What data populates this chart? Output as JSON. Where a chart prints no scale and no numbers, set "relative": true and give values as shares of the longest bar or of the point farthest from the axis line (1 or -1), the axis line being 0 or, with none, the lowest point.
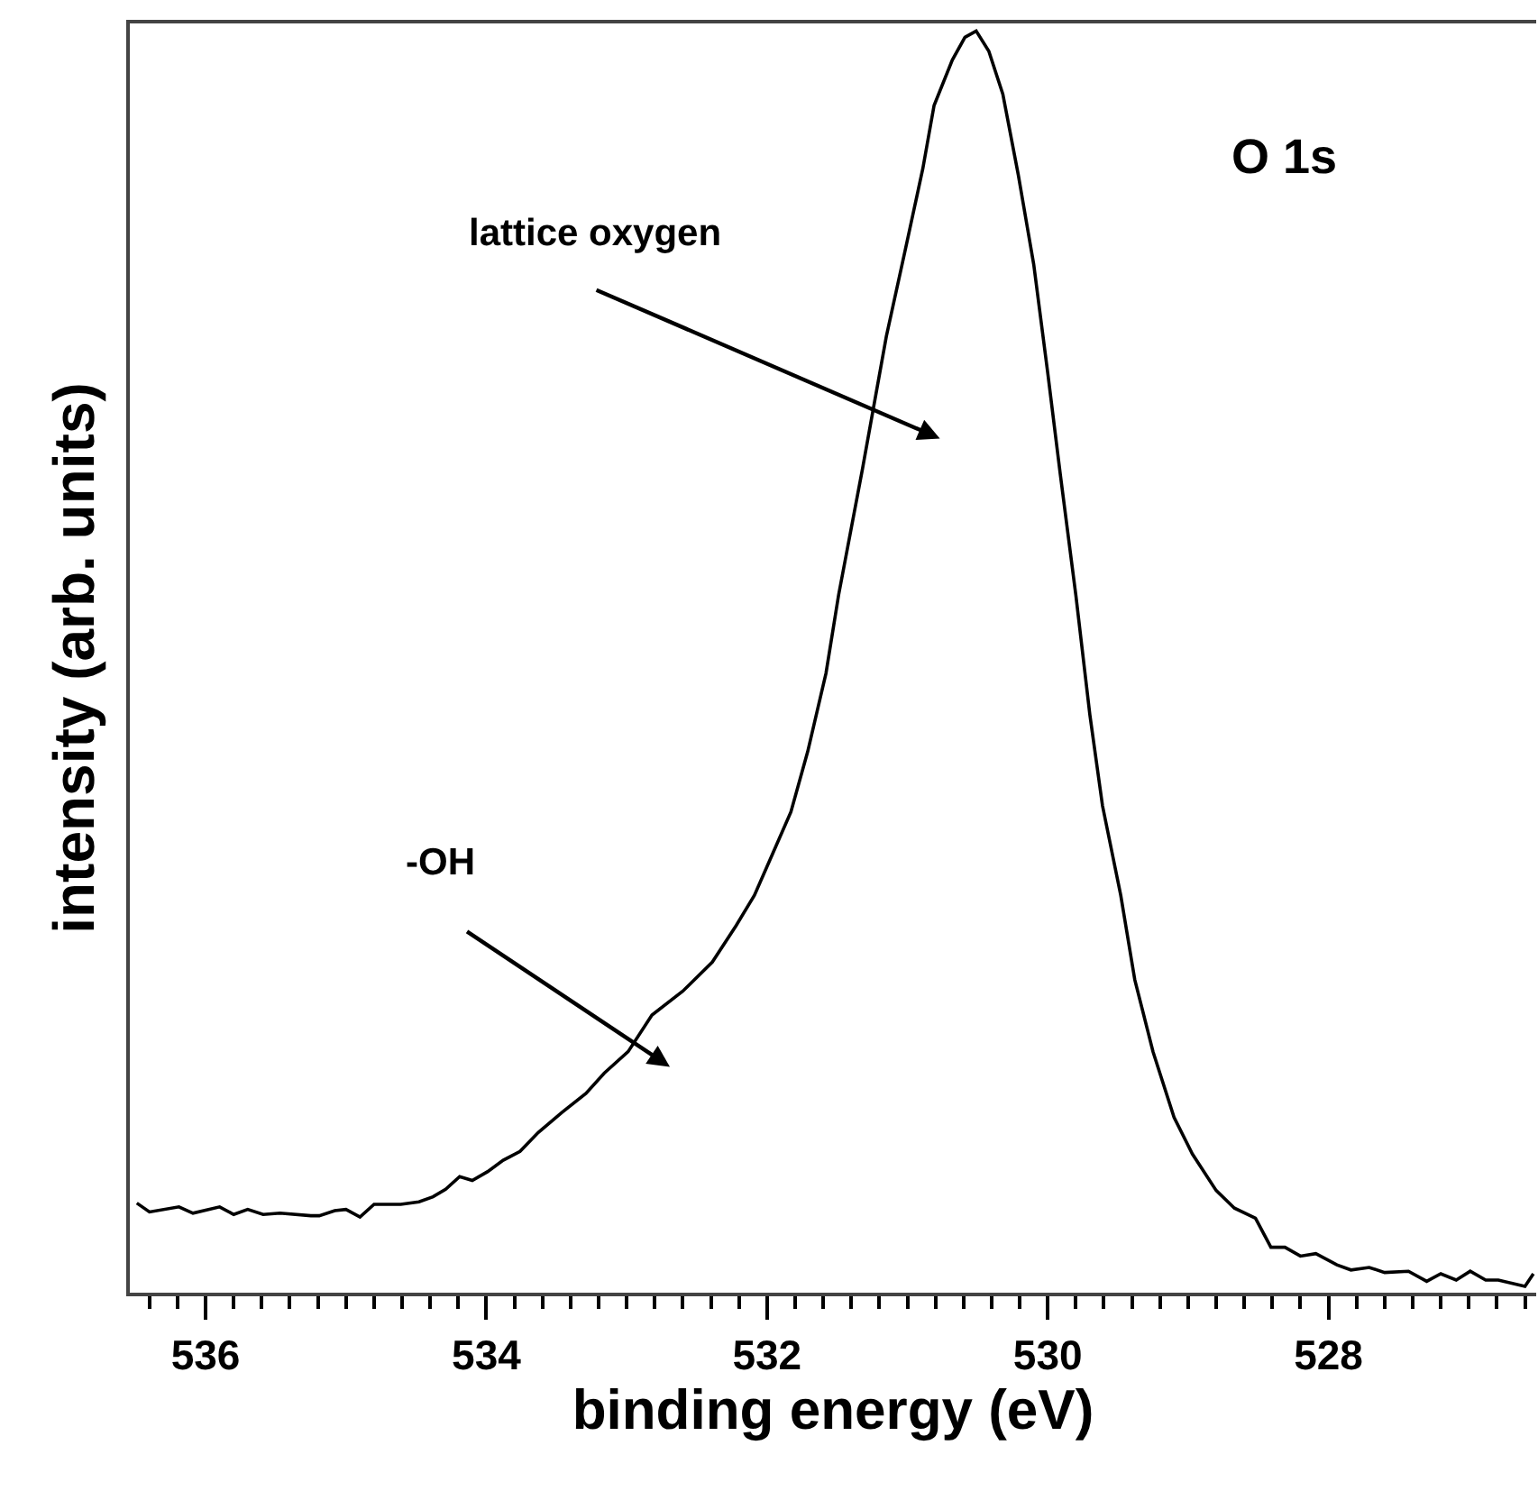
{
  "chart_data": {
    "type": "line",
    "relative": true,
    "xlabel": "binding energy (eV)",
    "ylabel": "intensity (arb. units)",
    "annotations": [
      "lattice oxygen",
      "-OH",
      "O 1s"
    ],
    "xlim": [
      536.54,
      526.52
    ],
    "xticks": [
      536,
      534,
      532,
      530,
      528,
      {
        "value": 536.4,
        "label": null
      },
      {
        "value": 536.2,
        "label": null
      },
      {
        "value": 535.8,
        "label": null
      },
      {
        "value": 535.6,
        "label": null
      },
      {
        "value": 535.4,
        "label": null
      },
      {
        "value": 535.2,
        "label": null
      },
      {
        "value": 535,
        "label": null
      },
      {
        "value": 534.8,
        "label": null
      },
      {
        "value": 534.6,
        "label": null
      },
      {
        "value": 534.4,
        "label": null
      },
      {
        "value": 534.2,
        "label": null
      },
      {
        "value": 533.8,
        "label": null
      },
      {
        "value": 533.6,
        "label": null
      },
      {
        "value": 533.4,
        "label": null
      },
      {
        "value": 533.2,
        "label": null
      },
      {
        "value": 533,
        "label": null
      },
      {
        "value": 532.8,
        "label": null
      },
      {
        "value": 532.6,
        "label": null
      },
      {
        "value": 532.4,
        "label": null
      },
      {
        "value": 532.2,
        "label": null
      },
      {
        "value": 531.8,
        "label": null
      },
      {
        "value": 531.6,
        "label": null
      },
      {
        "value": 531.4,
        "label": null
      },
      {
        "value": 531.2,
        "label": null
      },
      {
        "value": 531,
        "label": null
      },
      {
        "value": 530.8,
        "label": null
      },
      {
        "value": 530.6,
        "label": null
      },
      {
        "value": 530.4,
        "label": null
      },
      {
        "value": 530.2,
        "label": null
      },
      {
        "value": 529.8,
        "label": null
      },
      {
        "value": 529.6,
        "label": null
      },
      {
        "value": 529.4,
        "label": null
      },
      {
        "value": 529.2,
        "label": null
      },
      {
        "value": 529,
        "label": null
      },
      {
        "value": 528.8,
        "label": null
      },
      {
        "value": 528.6,
        "label": null
      },
      {
        "value": 528.4,
        "label": null
      },
      {
        "value": 528.2,
        "label": null
      },
      {
        "value": 527.8,
        "label": null
      },
      {
        "value": 527.6,
        "label": null
      },
      {
        "value": 527.4,
        "label": null
      },
      {
        "value": 527.2,
        "label": null
      },
      {
        "value": 527,
        "label": null
      },
      {
        "value": 526.8,
        "label": null
      },
      {
        "value": 526.6,
        "label": null
      }
    ],
    "marker": "none",
    "line_style": "solid",
    "series": [
      {
        "color": "#000000",
        "x": [
          536.49,
          536.4,
          536.19,
          536.09,
          535.9,
          535.8,
          535.7,
          535.59,
          535.47,
          535.25,
          535.19,
          535.08,
          535.0,
          534.9,
          534.8,
          534.61,
          534.48,
          534.38,
          534.29,
          534.19,
          534.1,
          533.99,
          533.88,
          533.76,
          533.63,
          533.46,
          533.29,
          533.16,
          532.99,
          532.82,
          532.6,
          532.39,
          532.22,
          532.09,
          531.96,
          531.83,
          531.71,
          531.58,
          531.49,
          531.32,
          531.15,
          531.02,
          530.89,
          530.81,
          530.68,
          530.59,
          530.51,
          530.42,
          530.32,
          530.21,
          530.1,
          530.0,
          529.91,
          529.8,
          529.7,
          529.61,
          529.48,
          529.38,
          529.25,
          529.1,
          528.97,
          528.8,
          528.67,
          528.52,
          528.41,
          528.31,
          528.2,
          528.09,
          527.94,
          527.84,
          527.71,
          527.6,
          527.43,
          527.3,
          527.2,
          527.09,
          526.99,
          526.88,
          526.79,
          526.6,
          526.54
        ],
        "values": [
          0.071,
          0.064,
          0.068,
          0.063,
          0.068,
          0.062,
          0.066,
          0.062,
          0.063,
          0.061,
          0.061,
          0.065,
          0.066,
          0.06,
          0.07,
          0.07,
          0.072,
          0.076,
          0.082,
          0.092,
          0.089,
          0.096,
          0.105,
          0.112,
          0.127,
          0.143,
          0.158,
          0.174,
          0.191,
          0.22,
          0.239,
          0.262,
          0.291,
          0.315,
          0.348,
          0.381,
          0.429,
          0.491,
          0.553,
          0.653,
          0.758,
          0.824,
          0.891,
          0.941,
          0.977,
          0.995,
          1.0,
          0.984,
          0.95,
          0.886,
          0.815,
          0.729,
          0.648,
          0.553,
          0.458,
          0.386,
          0.315,
          0.248,
          0.191,
          0.139,
          0.11,
          0.081,
          0.067,
          0.059,
          0.036,
          0.036,
          0.029,
          0.031,
          0.022,
          0.018,
          0.02,
          0.016,
          0.017,
          0.009,
          0.015,
          0.01,
          0.017,
          0.01,
          0.01,
          0.005,
          0.015
        ]
      }
    ]
  }
}
